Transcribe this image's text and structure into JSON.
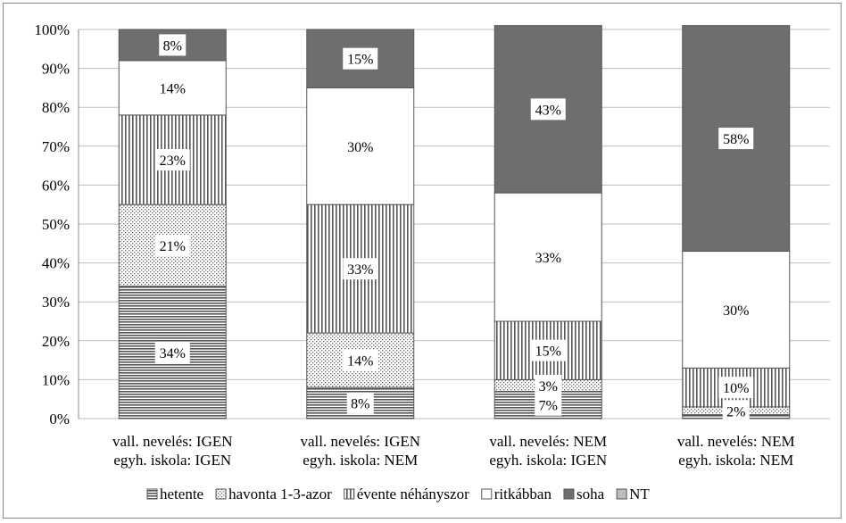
{
  "chart_data": {
    "type": "bar",
    "stacked": true,
    "percent": true,
    "categories": [
      [
        "vall. nevelés: IGEN",
        "egyh. iskola: IGEN"
      ],
      [
        "vall. nevelés: IGEN",
        "egyh. iskola: NEM"
      ],
      [
        "vall. nevelés: NEM",
        "egyh. iskola: IGEN"
      ],
      [
        "vall. nevelés: NEM",
        "egyh. iskola: NEM"
      ]
    ],
    "series": [
      {
        "name": "hetente",
        "values": [
          34,
          8,
          7,
          1
        ],
        "labels": [
          "34%",
          "8%",
          "7%",
          ""
        ],
        "pattern": "hlines"
      },
      {
        "name": "havonta 1-3-azor",
        "values": [
          21,
          14,
          3,
          2
        ],
        "labels": [
          "21%",
          "14%",
          "3%",
          "2%"
        ],
        "pattern": "dots"
      },
      {
        "name": "évente néhányszor",
        "values": [
          23,
          33,
          15,
          10
        ],
        "labels": [
          "23%",
          "33%",
          "15%",
          "10%"
        ],
        "pattern": "vlines"
      },
      {
        "name": "ritkábban",
        "values": [
          14,
          30,
          33,
          30
        ],
        "labels": [
          "14%",
          "30%",
          "33%",
          "30%"
        ],
        "pattern": "white"
      },
      {
        "name": "soha",
        "values": [
          8,
          15,
          43,
          58
        ],
        "labels": [
          "8%",
          "15%",
          "43%",
          "58%"
        ],
        "pattern": "dark"
      },
      {
        "name": "NT",
        "values": [
          0,
          0,
          0,
          0
        ],
        "labels": [
          "",
          "",
          "",
          ""
        ],
        "pattern": "light"
      }
    ],
    "yticks": [
      "0%",
      "10%",
      "20%",
      "30%",
      "40%",
      "50%",
      "60%",
      "70%",
      "80%",
      "90%",
      "100%"
    ],
    "ylim": [
      0,
      100
    ],
    "grid": true,
    "legend": "bottom",
    "colors": {
      "dark": "#6e6e6e",
      "light": "#bdbdbd",
      "stroke": "#555555",
      "grid": "#bfbfbf"
    }
  }
}
